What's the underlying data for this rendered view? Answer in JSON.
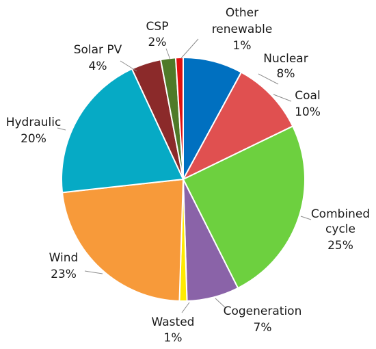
{
  "chart_data": {
    "type": "pie",
    "title": "",
    "legend": "none",
    "slices": [
      {
        "name": "Nuclear",
        "value": 8,
        "label": "8%",
        "color": "#0070c0"
      },
      {
        "name": "Coal",
        "value": 10,
        "label": "10%",
        "color": "#e05050"
      },
      {
        "name": "Combined cycle",
        "value": 25,
        "label": "25%",
        "color": "#6dd03f"
      },
      {
        "name": "Cogeneration",
        "value": 7,
        "label": "7%",
        "color": "#8a63a8"
      },
      {
        "name": "Wasted",
        "value": 1,
        "label": "1%",
        "color": "#ffea00"
      },
      {
        "name": "Wind",
        "value": 23,
        "label": "23%",
        "color": "#f79a3a"
      },
      {
        "name": "Hydraulic",
        "value": 20,
        "label": "20%",
        "color": "#06aac5"
      },
      {
        "name": "Solar PV",
        "value": 4,
        "label": "4%",
        "color": "#8b2a2a"
      },
      {
        "name": "CSP",
        "value": 2,
        "label": "2%",
        "color": "#4f7a28"
      },
      {
        "name": "Other renewable",
        "value": 1,
        "label": "1%",
        "color": "#e01010"
      }
    ]
  }
}
